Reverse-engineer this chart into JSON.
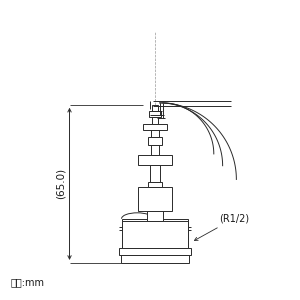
{
  "bg_color": "#ffffff",
  "line_color": "#2a2a2a",
  "dim_color": "#2a2a2a",
  "text_color": "#1a1a1a",
  "dim_label_65": "(65.0)",
  "dim_label_r12": "(R1/2)",
  "unit_label": "単位:mm",
  "fig_width": 3.0,
  "fig_height": 3.0,
  "dpi": 100
}
